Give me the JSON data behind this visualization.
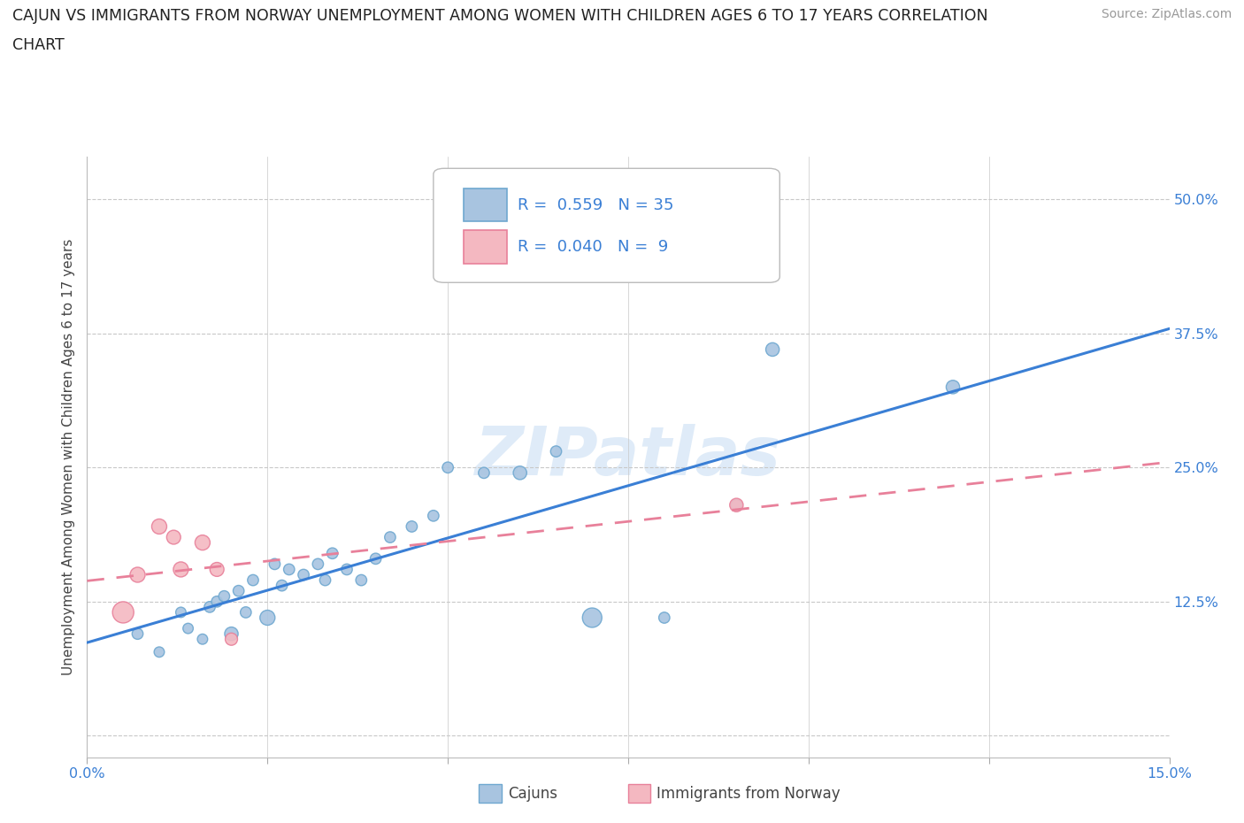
{
  "title_line1": "CAJUN VS IMMIGRANTS FROM NORWAY UNEMPLOYMENT AMONG WOMEN WITH CHILDREN AGES 6 TO 17 YEARS CORRELATION",
  "title_line2": "CHART",
  "source_text": "Source: ZipAtlas.com",
  "ylabel": "Unemployment Among Women with Children Ages 6 to 17 years",
  "xlim": [
    0.0,
    0.15
  ],
  "ylim": [
    -0.02,
    0.54
  ],
  "xticks": [
    0.0,
    0.025,
    0.05,
    0.075,
    0.1,
    0.125,
    0.15
  ],
  "xticklabels": [
    "0.0%",
    "",
    "",
    "",
    "",
    "",
    "15.0%"
  ],
  "ytick_positions": [
    0.0,
    0.125,
    0.25,
    0.375,
    0.5
  ],
  "yticklabels": [
    "",
    "12.5%",
    "25.0%",
    "37.5%",
    "50.0%"
  ],
  "cajun_x": [
    0.007,
    0.01,
    0.013,
    0.014,
    0.016,
    0.017,
    0.018,
    0.019,
    0.02,
    0.021,
    0.022,
    0.023,
    0.025,
    0.026,
    0.027,
    0.028,
    0.03,
    0.032,
    0.033,
    0.034,
    0.036,
    0.038,
    0.04,
    0.042,
    0.045,
    0.048,
    0.05,
    0.055,
    0.06,
    0.065,
    0.07,
    0.08,
    0.09,
    0.095,
    0.12
  ],
  "cajun_y": [
    0.095,
    0.078,
    0.115,
    0.1,
    0.09,
    0.12,
    0.125,
    0.13,
    0.095,
    0.135,
    0.115,
    0.145,
    0.11,
    0.16,
    0.14,
    0.155,
    0.15,
    0.16,
    0.145,
    0.17,
    0.155,
    0.145,
    0.165,
    0.185,
    0.195,
    0.205,
    0.25,
    0.245,
    0.245,
    0.265,
    0.11,
    0.11,
    0.215,
    0.36,
    0.325
  ],
  "cajun_sizes": [
    80,
    70,
    70,
    70,
    70,
    80,
    80,
    80,
    120,
    80,
    80,
    80,
    150,
    80,
    80,
    80,
    80,
    80,
    80,
    80,
    80,
    80,
    80,
    80,
    80,
    80,
    80,
    80,
    120,
    80,
    250,
    80,
    80,
    120,
    120
  ],
  "norway_x": [
    0.005,
    0.007,
    0.01,
    0.012,
    0.013,
    0.016,
    0.018,
    0.02,
    0.09
  ],
  "norway_y": [
    0.115,
    0.15,
    0.195,
    0.185,
    0.155,
    0.18,
    0.155,
    0.09,
    0.215
  ],
  "norway_sizes": [
    300,
    150,
    150,
    130,
    150,
    150,
    130,
    100,
    120
  ],
  "cajun_color": "#a8c4e0",
  "norway_color": "#f4b8c1",
  "cajun_edge_color": "#6fa8d0",
  "norway_edge_color": "#e8809a",
  "trend_cajun_color": "#3a7fd5",
  "trend_norway_color": "#e8809a",
  "R_cajun": 0.559,
  "N_cajun": 35,
  "R_norway": 0.04,
  "N_norway": 9,
  "watermark": "ZIPatlas",
  "legend_label_cajuns": "Cajuns",
  "legend_label_norway": "Immigrants from Norway",
  "background_color": "#ffffff",
  "hgrid_color": "#c8c8c8",
  "vgrid_color": "#c8c8c8"
}
